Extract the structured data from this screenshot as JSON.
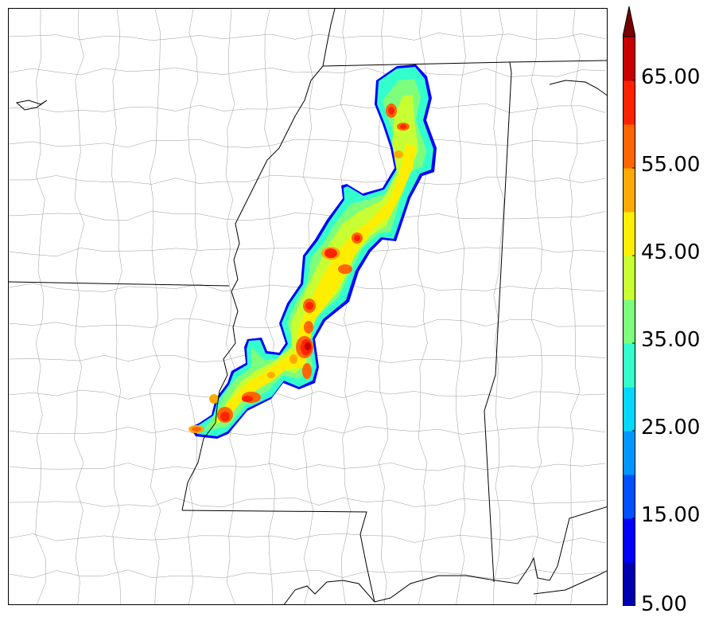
{
  "colorbar": {
    "labels": [
      "5.00",
      "15.00",
      "25.00",
      "35.00",
      "45.00",
      "55.00",
      "65.00"
    ],
    "levels": [
      5,
      10,
      15,
      20,
      25,
      30,
      35,
      40,
      45,
      50,
      55,
      60,
      65,
      70
    ],
    "colors": [
      "#0000b0",
      "#0000ff",
      "#0050ff",
      "#0096ff",
      "#00d8ff",
      "#33ffcc",
      "#7dff7d",
      "#c8ff32",
      "#ffee00",
      "#ffaa00",
      "#ff6600",
      "#ff2200",
      "#c80000",
      "#7a0000"
    ],
    "extend": "max"
  },
  "map": {
    "state_line_color": "#000000",
    "county_line_color": "#9a9a9a"
  }
}
